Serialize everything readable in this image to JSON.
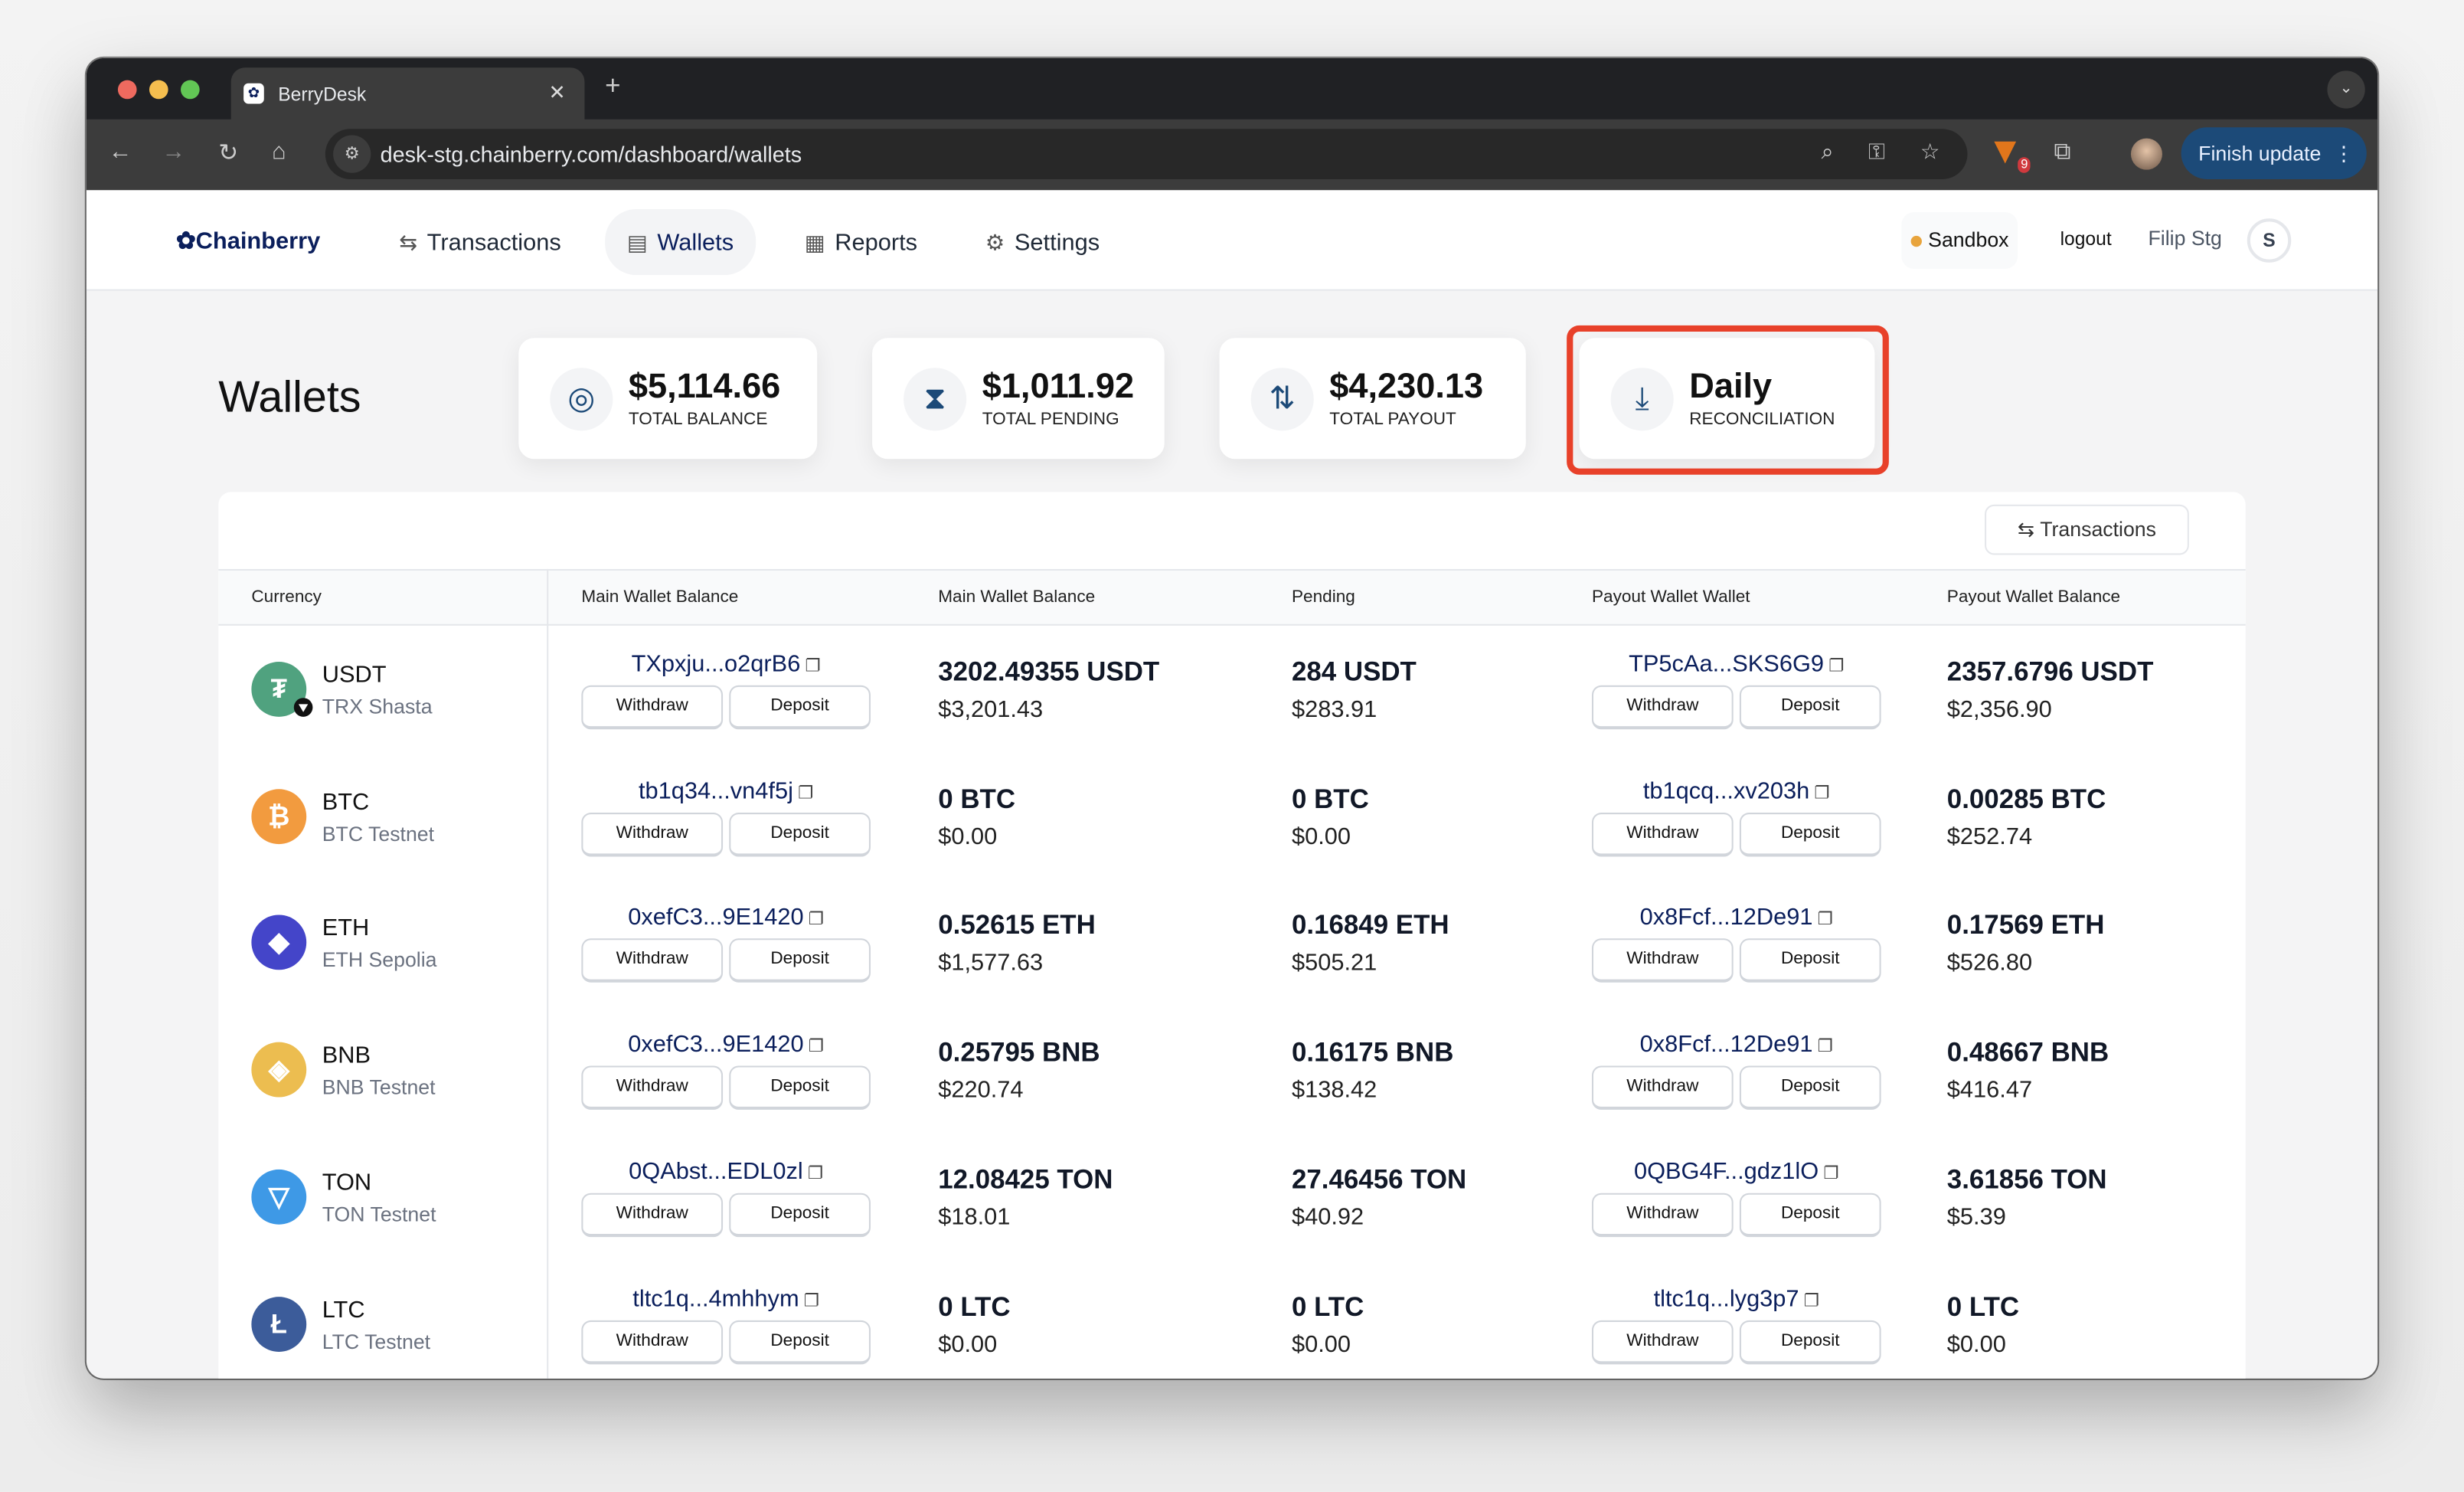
{
  "browser": {
    "tab_title": "BerryDesk",
    "url": "desk-stg.chainberry.com/dashboard/wallets",
    "finish_update": "Finish update",
    "extension_badge": "9"
  },
  "header": {
    "logo": "Chainberry",
    "nav": [
      {
        "label": "Transactions",
        "icon": "arrows-swap-icon"
      },
      {
        "label": "Wallets",
        "icon": "wallet-icon",
        "active": true
      },
      {
        "label": "Reports",
        "icon": "report-icon"
      },
      {
        "label": "Settings",
        "icon": "gear-icon"
      }
    ],
    "env": "Sandbox",
    "env_color": "#e8a43d",
    "logout": "logout",
    "user": "Filip Stg",
    "avatar_initial": "S"
  },
  "page": {
    "title": "Wallets"
  },
  "cards": [
    {
      "value": "$5,114.66",
      "label": "TOTAL BALANCE",
      "icon": "target-icon"
    },
    {
      "value": "$1,011.92",
      "label": "TOTAL PENDING",
      "icon": "hourglass-icon"
    },
    {
      "value": "$4,230.13",
      "label": "TOTAL PAYOUT",
      "icon": "payout-icon"
    },
    {
      "value": "Daily",
      "label": "RECONCILIATION",
      "icon": "download-icon"
    }
  ],
  "table": {
    "transactions_button": "Transactions",
    "columns": [
      "Currency",
      "Main Wallet Balance",
      "Main Wallet Balance",
      "Pending",
      "Payout Wallet Wallet",
      "Payout Wallet Balance"
    ],
    "withdraw": "Withdraw",
    "deposit": "Deposit",
    "rows": [
      {
        "coin": "USDT",
        "network": "TRX Shasta",
        "color": "#50a27f",
        "main_addr": "TXpxju...o2qrB6",
        "main_crypto": "3202.49355 USDT",
        "main_usd": "$3,201.43",
        "pending_crypto": "284 USDT",
        "pending_usd": "$283.91",
        "payout_addr": "TP5cAa...SKS6G9",
        "payout_crypto": "2357.6796 USDT",
        "payout_usd": "$2,356.90"
      },
      {
        "coin": "BTC",
        "network": "BTC Testnet",
        "color": "#f29b3f",
        "main_addr": "tb1q34...vn4f5j",
        "main_crypto": "0 BTC",
        "main_usd": "$0.00",
        "pending_crypto": "0 BTC",
        "pending_usd": "$0.00",
        "payout_addr": "tb1qcq...xv203h",
        "payout_crypto": "0.00285 BTC",
        "payout_usd": "$252.74"
      },
      {
        "coin": "ETH",
        "network": "ETH Sepolia",
        "color": "#4445c9",
        "main_addr": "0xefC3...9E1420",
        "main_crypto": "0.52615 ETH",
        "main_usd": "$1,577.63",
        "pending_crypto": "0.16849 ETH",
        "pending_usd": "$505.21",
        "payout_addr": "0x8Fcf...12De91",
        "payout_crypto": "0.17569 ETH",
        "payout_usd": "$526.80"
      },
      {
        "coin": "BNB",
        "network": "BNB Testnet",
        "color": "#ecbd50",
        "main_addr": "0xefC3...9E1420",
        "main_crypto": "0.25795 BNB",
        "main_usd": "$220.74",
        "pending_crypto": "0.16175 BNB",
        "pending_usd": "$138.42",
        "payout_addr": "0x8Fcf...12De91",
        "payout_crypto": "0.48667 BNB",
        "payout_usd": "$416.47"
      },
      {
        "coin": "TON",
        "network": "TON Testnet",
        "color": "#3e99e6",
        "main_addr": "0QAbst...EDL0zl",
        "main_crypto": "12.08425 TON",
        "main_usd": "$18.01",
        "pending_crypto": "27.46456 TON",
        "pending_usd": "$40.92",
        "payout_addr": "0QBG4F...gdz1lO",
        "payout_crypto": "3.61856 TON",
        "payout_usd": "$5.39"
      },
      {
        "coin": "LTC",
        "network": "LTC Testnet",
        "color": "#3c5c9a",
        "main_addr": "tltc1q...4mhhym",
        "main_crypto": "0 LTC",
        "main_usd": "$0.00",
        "pending_crypto": "0 LTC",
        "pending_usd": "$0.00",
        "payout_addr": "tltc1q...lyg3p7",
        "payout_crypto": "0 LTC",
        "payout_usd": "$0.00"
      }
    ]
  }
}
